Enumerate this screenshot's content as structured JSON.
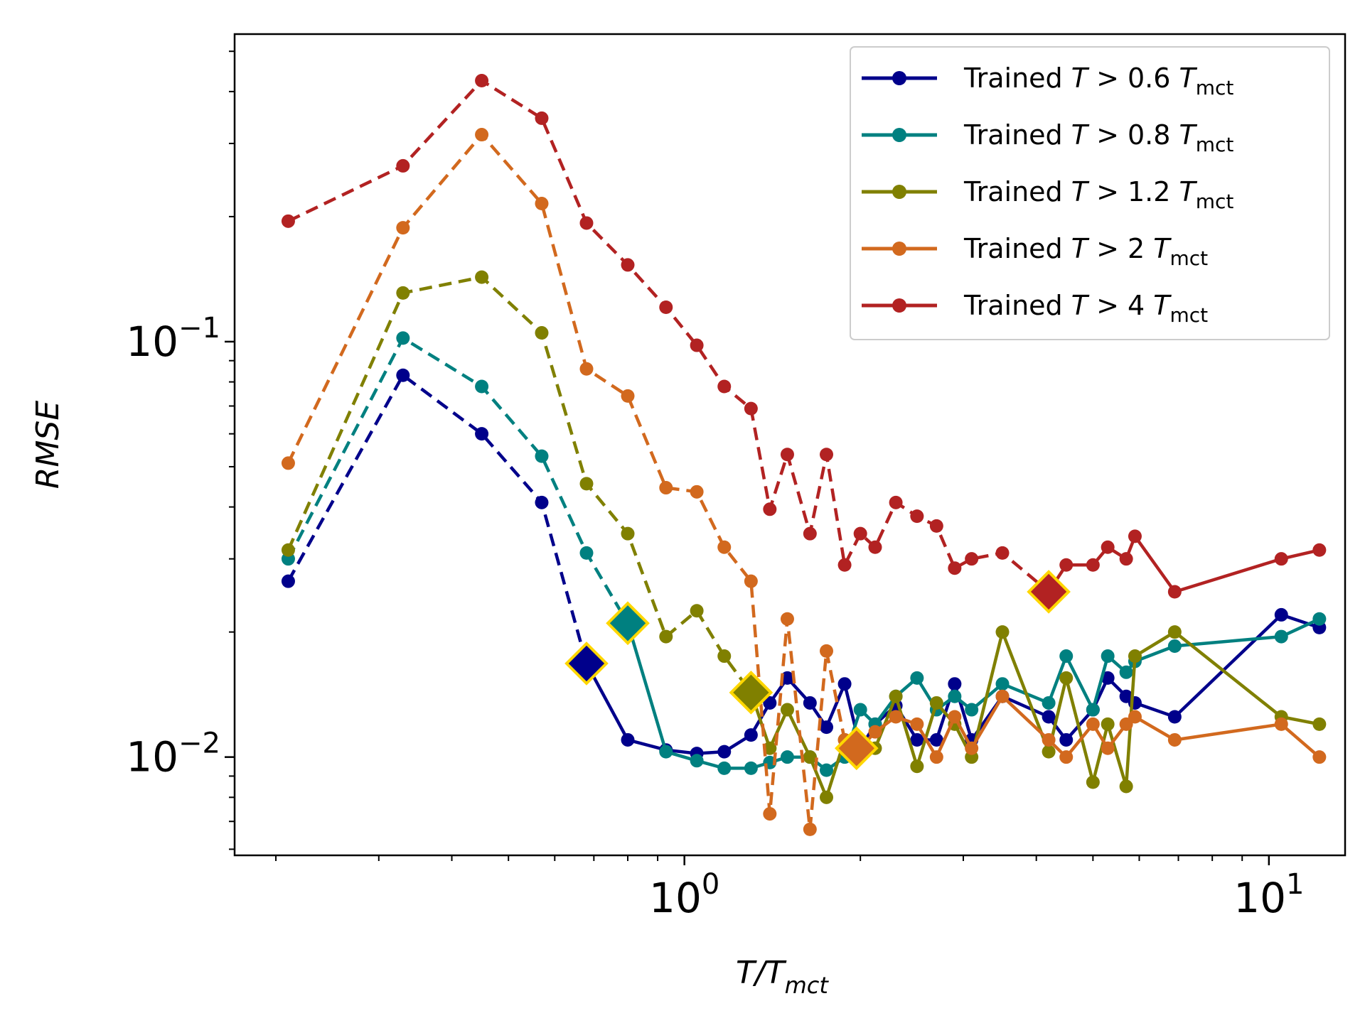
{
  "chart_data": {
    "type": "line",
    "xscale": "log",
    "yscale": "log",
    "xlabel": "T/T",
    "xlabel_sub": "mct",
    "ylabel": "RMSE",
    "xlim": [
      0.17,
      13.5
    ],
    "ylim": [
      0.0058,
      0.55
    ],
    "xticks": [
      {
        "value": 1,
        "base": "10",
        "exp": "0"
      },
      {
        "value": 10,
        "base": "10",
        "exp": "1"
      }
    ],
    "yticks": [
      {
        "value": 0.01,
        "base": "10",
        "exp": "−2"
      },
      {
        "value": 0.1,
        "base": "10",
        "exp": "−1"
      }
    ],
    "legend_position": "top-right",
    "series": [
      {
        "name": "Trained T > 0.6 T_mct",
        "legend_prefix": "Trained ",
        "legend_var": "T",
        "legend_op": " > 0.6 ",
        "legend_sub": "mct",
        "color": "#00008b",
        "train_threshold": 0.6,
        "x": [
          0.21,
          0.33,
          0.45,
          0.57,
          0.68,
          0.8,
          0.93,
          1.05,
          1.17,
          1.3,
          1.4,
          1.5,
          1.64,
          1.75,
          1.88,
          2.0,
          2.12,
          2.3,
          2.5,
          2.7,
          2.9,
          3.1,
          3.5,
          4.2,
          4.5,
          5.0,
          5.3,
          5.7,
          5.9,
          6.9,
          10.5,
          12.2
        ],
        "y": [
          0.0265,
          0.083,
          0.06,
          0.041,
          0.0168,
          0.011,
          0.0104,
          0.0102,
          0.0103,
          0.0113,
          0.0135,
          0.0155,
          0.0135,
          0.0118,
          0.015,
          0.0105,
          0.012,
          0.0133,
          0.011,
          0.011,
          0.015,
          0.011,
          0.014,
          0.0125,
          0.011,
          0.013,
          0.0155,
          0.014,
          0.0135,
          0.0125,
          0.022,
          0.0205
        ],
        "dashed_upto": 0.68,
        "marker_x": 0.68,
        "marker_y": 0.0168
      },
      {
        "name": "Trained T > 0.8 T_mct",
        "legend_prefix": "Trained ",
        "legend_var": "T",
        "legend_op": " > 0.8 ",
        "legend_sub": "mct",
        "color": "#008080",
        "train_threshold": 0.8,
        "x": [
          0.21,
          0.33,
          0.45,
          0.57,
          0.68,
          0.8,
          0.93,
          1.05,
          1.17,
          1.3,
          1.4,
          1.5,
          1.64,
          1.75,
          1.88,
          2.0,
          2.12,
          2.3,
          2.5,
          2.7,
          2.9,
          3.1,
          3.5,
          4.2,
          4.5,
          5.0,
          5.3,
          5.7,
          5.9,
          6.9,
          10.5,
          12.2
        ],
        "y": [
          0.03,
          0.102,
          0.078,
          0.053,
          0.031,
          0.021,
          0.0103,
          0.0098,
          0.0094,
          0.0094,
          0.0097,
          0.01,
          0.01,
          0.0093,
          0.01,
          0.013,
          0.012,
          0.014,
          0.0155,
          0.013,
          0.014,
          0.013,
          0.015,
          0.0135,
          0.0175,
          0.013,
          0.0175,
          0.016,
          0.017,
          0.0185,
          0.0195,
          0.0215
        ],
        "dashed_upto": 0.8,
        "marker_x": 0.8,
        "marker_y": 0.021
      },
      {
        "name": "Trained T > 1.2 T_mct",
        "legend_prefix": "Trained ",
        "legend_var": "T",
        "legend_op": " > 1.2 ",
        "legend_sub": "mct",
        "color": "#808000",
        "train_threshold": 1.2,
        "x": [
          0.21,
          0.33,
          0.45,
          0.57,
          0.68,
          0.8,
          0.93,
          1.05,
          1.17,
          1.3,
          1.4,
          1.5,
          1.64,
          1.75,
          1.88,
          2.0,
          2.12,
          2.3,
          2.5,
          2.7,
          2.9,
          3.1,
          3.5,
          4.2,
          4.5,
          5.0,
          5.3,
          5.7,
          5.9,
          6.9,
          10.5,
          12.2
        ],
        "y": [
          0.0315,
          0.131,
          0.143,
          0.105,
          0.0455,
          0.0345,
          0.0195,
          0.0225,
          0.0175,
          0.0143,
          0.0105,
          0.013,
          0.01,
          0.008,
          0.011,
          0.011,
          0.0105,
          0.014,
          0.0095,
          0.0135,
          0.012,
          0.01,
          0.02,
          0.0103,
          0.0155,
          0.0087,
          0.012,
          0.0085,
          0.0175,
          0.02,
          0.0125,
          0.012
        ],
        "dashed_upto": 1.3,
        "marker_x": 1.3,
        "marker_y": 0.0143
      },
      {
        "name": "Trained T > 2 T_mct",
        "legend_prefix": "Trained ",
        "legend_var": "T",
        "legend_op": " > 2 ",
        "legend_sub": "mct",
        "color": "#d2691e",
        "train_threshold": 2,
        "x": [
          0.21,
          0.33,
          0.45,
          0.57,
          0.68,
          0.8,
          0.93,
          1.05,
          1.17,
          1.3,
          1.4,
          1.5,
          1.64,
          1.75,
          1.88,
          2.0,
          2.12,
          2.3,
          2.5,
          2.7,
          2.9,
          3.1,
          3.5,
          4.2,
          4.5,
          5.0,
          5.3,
          5.7,
          5.9,
          6.9,
          10.5,
          12.2
        ],
        "y": [
          0.051,
          0.188,
          0.315,
          0.215,
          0.086,
          0.074,
          0.0445,
          0.0435,
          0.032,
          0.0265,
          0.0073,
          0.0215,
          0.0067,
          0.018,
          0.011,
          0.0105,
          0.0115,
          0.0125,
          0.012,
          0.01,
          0.0125,
          0.0105,
          0.014,
          0.011,
          0.01,
          0.012,
          0.0105,
          0.012,
          0.0125,
          0.011,
          0.012,
          0.01
        ],
        "dashed_upto": 1.88,
        "marker_x": 1.97,
        "marker_y": 0.0105
      },
      {
        "name": "Trained T > 4 T_mct",
        "legend_prefix": "Trained ",
        "legend_var": "T",
        "legend_op": " > 4 ",
        "legend_sub": "mct",
        "color": "#b22222",
        "train_threshold": 4,
        "x": [
          0.21,
          0.33,
          0.45,
          0.57,
          0.68,
          0.8,
          0.93,
          1.05,
          1.17,
          1.3,
          1.4,
          1.5,
          1.64,
          1.75,
          1.88,
          2.0,
          2.12,
          2.3,
          2.5,
          2.7,
          2.9,
          3.1,
          3.5,
          4.2,
          4.5,
          5.0,
          5.3,
          5.7,
          5.9,
          6.9,
          10.5,
          12.2
        ],
        "y": [
          0.195,
          0.265,
          0.425,
          0.345,
          0.193,
          0.153,
          0.121,
          0.098,
          0.078,
          0.069,
          0.0395,
          0.0535,
          0.0345,
          0.0535,
          0.029,
          0.0345,
          0.032,
          0.041,
          0.038,
          0.036,
          0.0285,
          0.03,
          0.031,
          0.025,
          0.029,
          0.029,
          0.032,
          0.03,
          0.034,
          0.025,
          0.03,
          0.0315
        ],
        "dashed_upto": 4.2,
        "marker_x": 4.2,
        "marker_y": 0.025
      }
    ]
  }
}
